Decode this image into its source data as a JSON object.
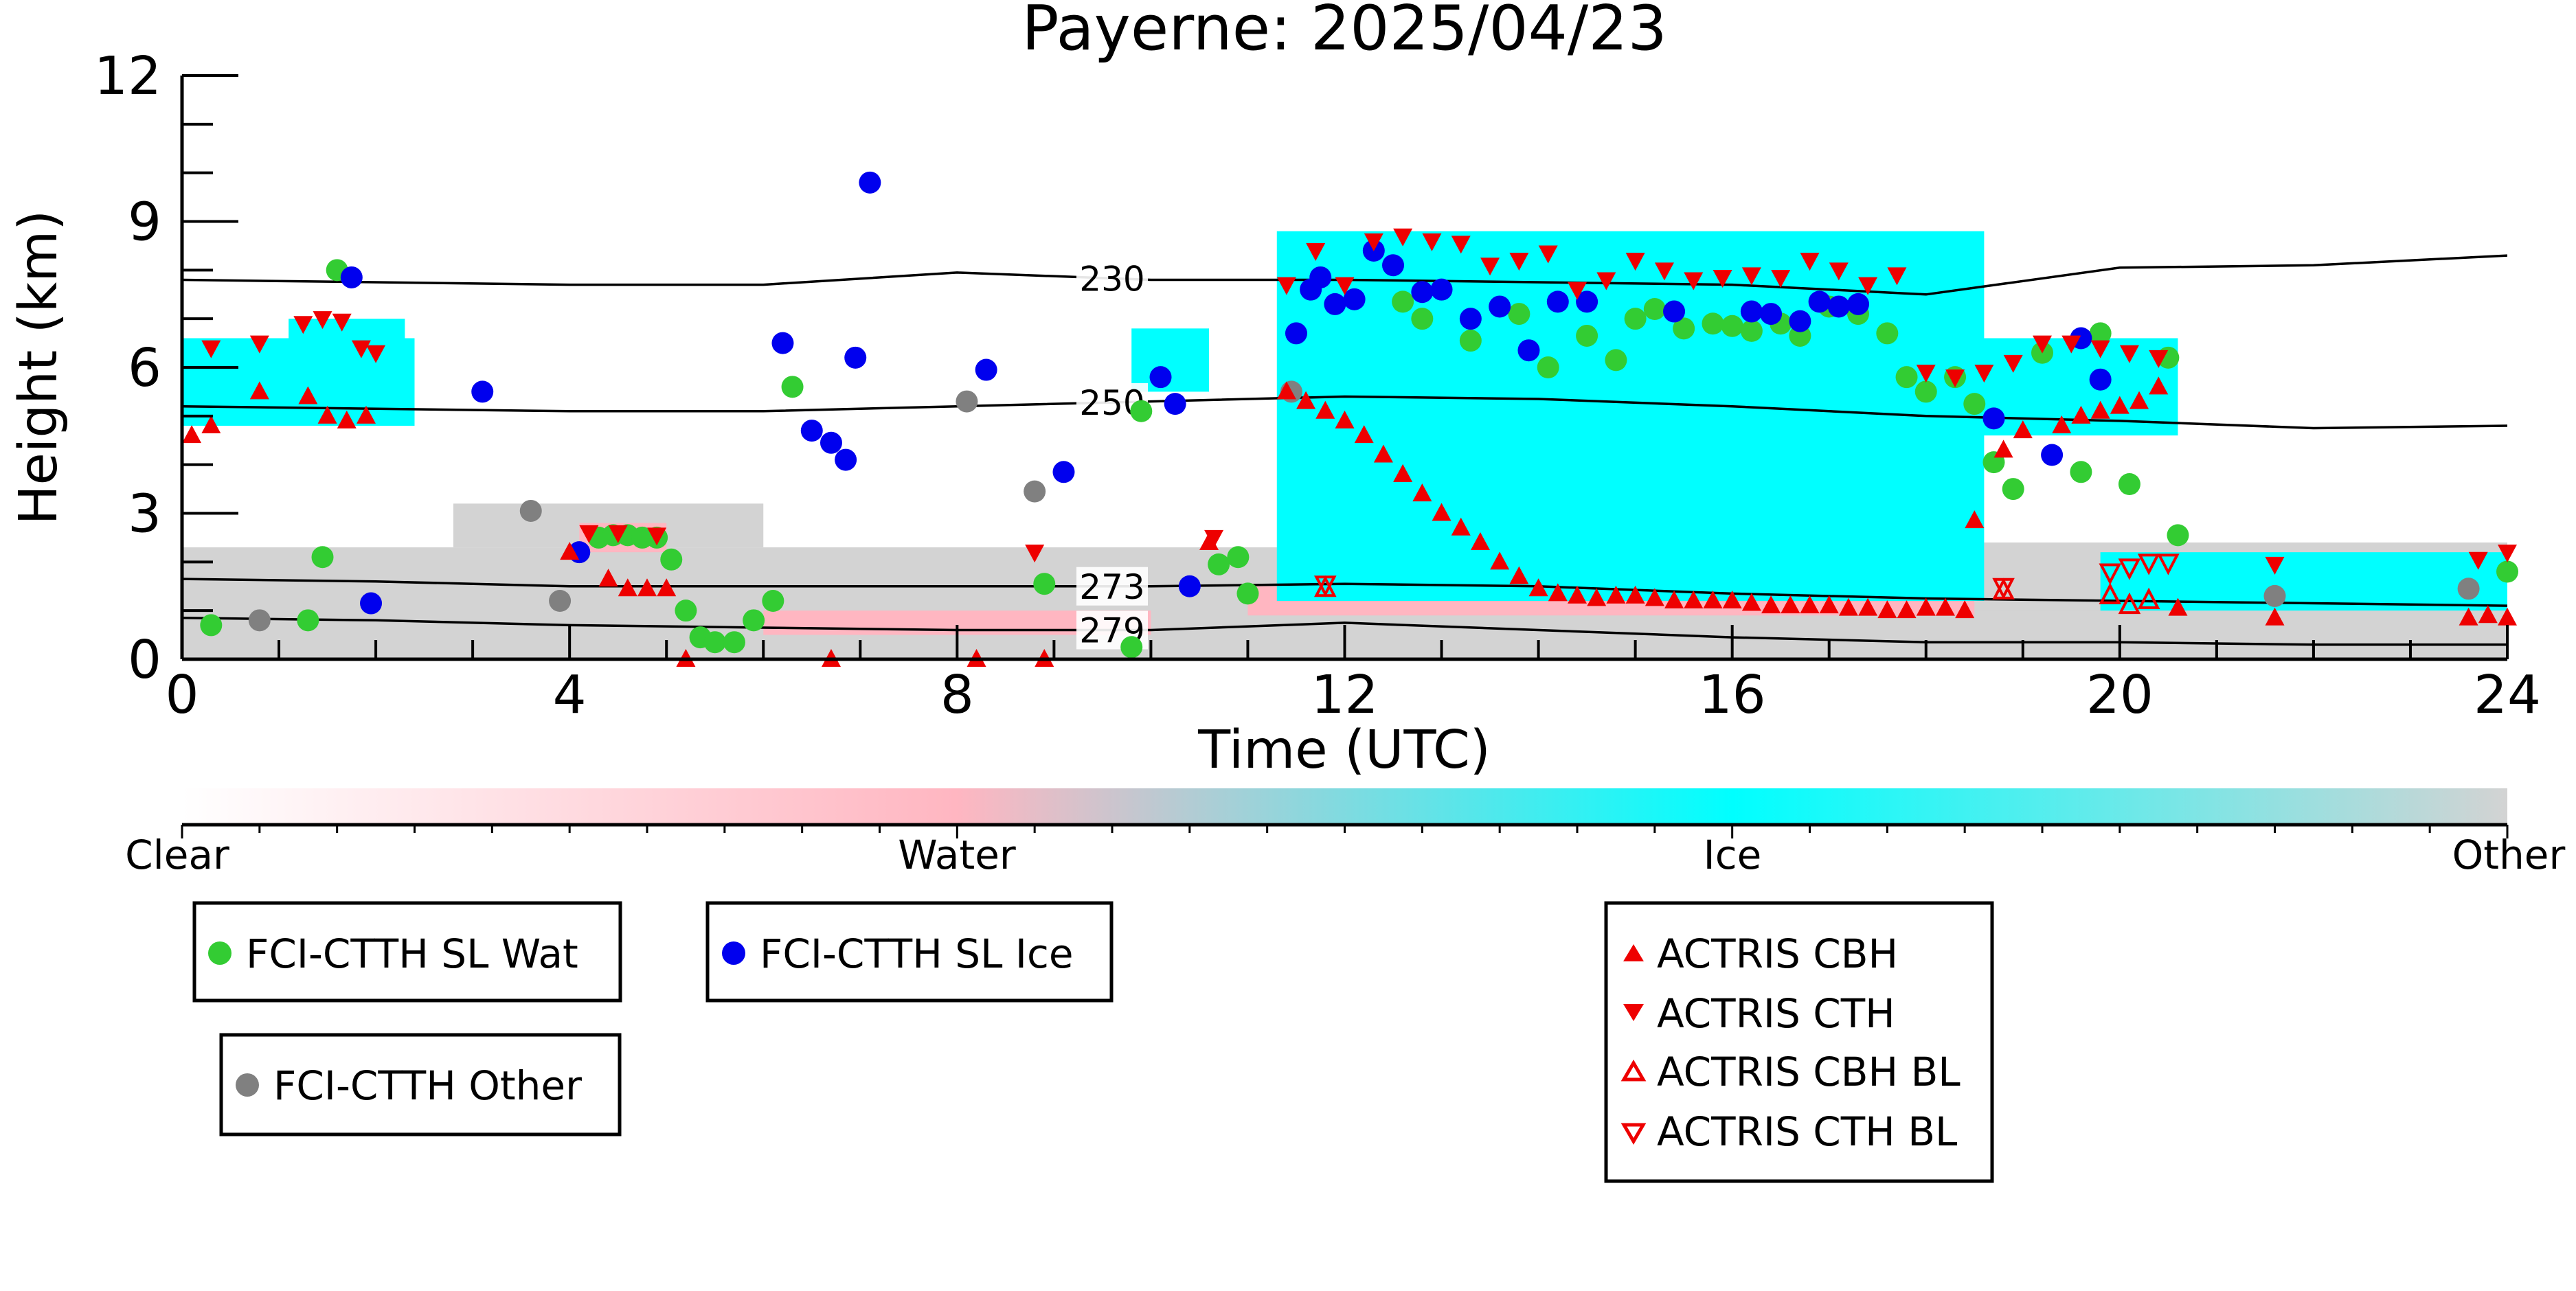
{
  "chart_data": {
    "type": "scatter",
    "title": "Payerne: 2025/04/23",
    "xlabel": "Time (UTC)",
    "ylabel": "Height (km)",
    "xlim": [
      0,
      24
    ],
    "ylim": [
      0,
      12
    ],
    "xticks": [
      0,
      4,
      8,
      12,
      16,
      20,
      24
    ],
    "yticks": [
      0,
      3,
      6,
      9,
      12
    ],
    "grid": false,
    "colorbar": {
      "labels": [
        "Clear",
        "Water",
        "Ice",
        "Other"
      ],
      "colors": {
        "Clear": "#ffffff",
        "Water": "#ffb6c1",
        "Ice": "#00ffff",
        "Other": "#d3d3d3"
      }
    },
    "background_cloud_mask": {
      "ice": [
        {
          "t0": 0.0,
          "t1": 2.4,
          "h0": 4.8,
          "h1": 6.6
        },
        {
          "t0": 1.1,
          "t1": 2.3,
          "h0": 5.0,
          "h1": 7.0
        },
        {
          "t0": 9.8,
          "t1": 10.6,
          "h0": 5.5,
          "h1": 6.8
        },
        {
          "t0": 11.3,
          "t1": 18.6,
          "h0": 1.2,
          "h1": 8.8
        },
        {
          "t0": 18.4,
          "t1": 20.6,
          "h0": 4.6,
          "h1": 6.6
        },
        {
          "t0": 19.8,
          "t1": 24.0,
          "h0": 1.0,
          "h1": 2.2
        }
      ],
      "water": [
        {
          "t0": 4.1,
          "t1": 5.0,
          "h0": 2.2,
          "h1": 2.8
        },
        {
          "t0": 11.0,
          "t1": 18.5,
          "h0": 0.9,
          "h1": 1.5
        },
        {
          "t0": 6.0,
          "t1": 10.0,
          "h0": 0.5,
          "h1": 1.0
        }
      ],
      "other": [
        {
          "t0": 0.0,
          "t1": 11.5,
          "h0": 0.0,
          "h1": 2.3
        },
        {
          "t0": 2.8,
          "t1": 6.0,
          "h0": 2.3,
          "h1": 3.2
        },
        {
          "t0": 11.5,
          "t1": 24.0,
          "h0": 0.0,
          "h1": 1.1
        },
        {
          "t0": 18.2,
          "t1": 24.0,
          "h0": 1.0,
          "h1": 2.4
        }
      ]
    },
    "isotherms": [
      {
        "label": "230",
        "label_x": 9.6,
        "x": [
          0,
          2,
          4,
          6,
          8,
          10,
          12,
          14,
          16,
          18,
          20,
          22,
          24
        ],
        "y": [
          7.8,
          7.75,
          7.7,
          7.7,
          7.95,
          7.8,
          7.8,
          7.75,
          7.7,
          7.5,
          8.05,
          8.1,
          8.3
        ]
      },
      {
        "label": "250",
        "label_x": 9.6,
        "x": [
          0,
          2,
          4,
          6,
          8,
          10,
          12,
          14,
          16,
          18,
          20,
          22,
          24
        ],
        "y": [
          5.2,
          5.15,
          5.1,
          5.1,
          5.2,
          5.3,
          5.4,
          5.35,
          5.2,
          5.0,
          4.9,
          4.75,
          4.8
        ]
      },
      {
        "label": "273",
        "label_x": 9.6,
        "x": [
          0,
          2,
          4,
          6,
          8,
          10,
          12,
          14,
          16,
          18,
          20,
          22,
          24
        ],
        "y": [
          1.65,
          1.6,
          1.5,
          1.5,
          1.5,
          1.5,
          1.55,
          1.5,
          1.35,
          1.25,
          1.2,
          1.15,
          1.1
        ]
      },
      {
        "label": "279",
        "label_x": 9.6,
        "x": [
          0,
          2,
          4,
          6,
          8,
          10,
          12,
          14,
          16,
          18,
          20,
          22,
          24
        ],
        "y": [
          0.85,
          0.8,
          0.7,
          0.65,
          0.6,
          0.6,
          0.75,
          0.6,
          0.45,
          0.35,
          0.35,
          0.3,
          0.3
        ]
      }
    ],
    "series": [
      {
        "name": "FCI-CTTH SL Wat",
        "marker": "circle",
        "color": "#33cc33",
        "x": [
          0.3,
          1.3,
          1.45,
          1.6,
          4.3,
          4.45,
          4.6,
          4.75,
          4.9,
          5.05,
          5.2,
          5.35,
          5.5,
          5.7,
          5.9,
          6.1,
          6.3,
          8.9,
          9.8,
          9.9,
          10.7,
          10.9,
          11.0,
          12.6,
          12.8,
          13.3,
          13.8,
          14.1,
          14.5,
          14.8,
          15.0,
          15.2,
          15.5,
          15.8,
          16.0,
          16.2,
          16.5,
          16.7,
          17.0,
          17.3,
          17.6,
          17.8,
          18.0,
          18.3,
          18.5,
          18.7,
          18.9,
          19.2,
          19.6,
          19.8,
          20.1,
          20.5,
          20.6,
          24.0
        ],
        "y": [
          0.7,
          0.8,
          2.1,
          8.0,
          2.5,
          2.55,
          2.55,
          2.5,
          2.5,
          2.05,
          1.0,
          0.45,
          0.35,
          0.35,
          0.8,
          1.2,
          5.6,
          1.55,
          0.25,
          5.1,
          1.95,
          2.1,
          1.35,
          7.35,
          7.0,
          6.55,
          7.1,
          6.0,
          6.65,
          6.15,
          7.0,
          7.2,
          6.8,
          6.9,
          6.85,
          6.75,
          6.9,
          6.65,
          7.25,
          7.1,
          6.7,
          5.8,
          5.5,
          5.8,
          5.25,
          4.05,
          3.5,
          6.3,
          3.85,
          6.7,
          3.6,
          6.2,
          2.55,
          1.8
        ]
      },
      {
        "name": "FCI-CTTH SL Ice",
        "marker": "circle",
        "color": "#0000ee",
        "x": [
          1.75,
          1.95,
          3.1,
          4.1,
          6.2,
          6.5,
          6.7,
          6.85,
          6.95,
          7.1,
          8.3,
          9.1,
          10.1,
          10.25,
          10.4,
          11.5,
          11.65,
          11.75,
          11.9,
          12.1,
          12.3,
          12.5,
          12.8,
          13.0,
          13.3,
          13.6,
          13.9,
          14.2,
          14.5,
          15.4,
          16.2,
          16.4,
          16.7,
          16.9,
          17.1,
          17.3,
          18.7,
          19.3,
          19.6,
          19.8
        ],
        "y": [
          7.85,
          1.15,
          5.5,
          2.2,
          6.5,
          4.7,
          4.45,
          4.1,
          6.2,
          9.8,
          5.95,
          3.85,
          5.8,
          5.25,
          1.5,
          6.7,
          7.6,
          7.85,
          7.3,
          7.4,
          8.4,
          8.1,
          7.55,
          7.6,
          7.0,
          7.25,
          6.35,
          7.35,
          7.35,
          7.15,
          7.15,
          7.1,
          6.95,
          7.35,
          7.25,
          7.3,
          4.95,
          4.2,
          6.6,
          5.75
        ]
      },
      {
        "name": "FCI-CTTH Other",
        "marker": "circle",
        "color": "#808080",
        "x": [
          0.8,
          3.6,
          3.9,
          8.1,
          8.8,
          11.45,
          21.6,
          23.6
        ],
        "y": [
          0.8,
          3.05,
          1.2,
          5.3,
          3.45,
          5.5,
          1.3,
          1.45
        ]
      },
      {
        "name": "ACTRIS CBH",
        "marker": "triangle-up",
        "color": "#ee0000",
        "x": [
          0.1,
          0.3,
          0.8,
          1.3,
          1.5,
          1.7,
          1.9,
          4.0,
          4.4,
          4.6,
          4.8,
          5.0,
          5.2,
          6.7,
          8.2,
          8.9,
          10.6,
          11.4,
          11.6,
          11.8,
          12.0,
          12.2,
          12.4,
          12.6,
          12.8,
          13.0,
          13.2,
          13.4,
          13.6,
          13.8,
          14.0,
          14.2,
          14.4,
          14.6,
          14.8,
          15.0,
          15.2,
          15.4,
          15.6,
          15.8,
          16.0,
          16.2,
          16.4,
          16.6,
          16.8,
          17.0,
          17.2,
          17.4,
          17.6,
          17.8,
          18.0,
          18.2,
          18.4,
          18.5,
          18.8,
          19.0,
          19.4,
          19.6,
          19.8,
          20.0,
          20.2,
          20.4,
          20.6,
          21.6,
          23.6,
          23.8,
          24.0
        ],
        "y": [
          4.6,
          4.8,
          5.5,
          5.4,
          5.0,
          4.9,
          5.0,
          2.2,
          1.65,
          1.45,
          1.45,
          1.45,
          0.0,
          0.0,
          0.0,
          0.0,
          2.4,
          5.5,
          5.3,
          5.1,
          4.9,
          4.6,
          4.2,
          3.8,
          3.4,
          3.0,
          2.7,
          2.4,
          2.0,
          1.7,
          1.45,
          1.35,
          1.3,
          1.25,
          1.3,
          1.3,
          1.25,
          1.2,
          1.2,
          1.2,
          1.2,
          1.15,
          1.1,
          1.1,
          1.1,
          1.1,
          1.05,
          1.05,
          1.0,
          1.0,
          1.05,
          1.05,
          1.0,
          2.85,
          4.3,
          4.7,
          4.8,
          5.0,
          5.1,
          5.2,
          5.3,
          5.6,
          1.05,
          0.85,
          0.85,
          0.9,
          0.85
        ]
      },
      {
        "name": "ACTRIS CTH",
        "marker": "triangle-down",
        "color": "#ee0000",
        "x": [
          0.3,
          0.8,
          1.25,
          1.45,
          1.65,
          1.85,
          2.0,
          4.2,
          4.5,
          4.9,
          8.8,
          10.65,
          11.4,
          11.7,
          12.0,
          12.3,
          12.6,
          12.9,
          13.2,
          13.5,
          13.8,
          14.1,
          14.4,
          14.7,
          15.0,
          15.3,
          15.6,
          15.9,
          16.2,
          16.5,
          16.8,
          17.1,
          17.4,
          17.7,
          18.0,
          18.3,
          18.6,
          18.9,
          19.2,
          19.5,
          19.8,
          20.1,
          20.4,
          21.6,
          23.7,
          24.0
        ],
        "y": [
          6.4,
          6.5,
          6.9,
          7.0,
          6.95,
          6.4,
          6.3,
          2.6,
          2.6,
          2.55,
          2.2,
          2.5,
          7.7,
          8.4,
          7.7,
          8.6,
          8.7,
          8.6,
          8.55,
          8.1,
          8.2,
          8.35,
          7.6,
          7.8,
          8.2,
          8.0,
          7.8,
          7.85,
          7.9,
          7.85,
          8.2,
          8.0,
          7.7,
          7.9,
          5.9,
          5.8,
          5.9,
          6.1,
          6.5,
          6.5,
          6.4,
          6.3,
          6.2,
          1.95,
          2.05,
          2.2
        ]
      },
      {
        "name": "ACTRIS CBH BL",
        "marker": "triangle-up-open",
        "color": "#ee0000",
        "x": [
          11.8,
          18.8,
          19.9,
          20.1,
          20.3
        ],
        "y": [
          1.45,
          1.4,
          1.3,
          1.1,
          1.2
        ]
      },
      {
        "name": "ACTRIS CTH BL",
        "marker": "triangle-down-open",
        "color": "#ee0000",
        "x": [
          11.8,
          18.8,
          19.9,
          20.1,
          20.3,
          20.5
        ],
        "y": [
          1.55,
          1.5,
          1.8,
          1.9,
          2.0,
          2.0
        ]
      }
    ],
    "legend": [
      {
        "placement": "bottom-left",
        "entries": [
          "FCI-CTTH SL Wat"
        ]
      },
      {
        "placement": "bottom-left",
        "entries": [
          "FCI-CTTH SL Ice"
        ]
      },
      {
        "placement": "bottom-left",
        "entries": [
          "FCI-CTTH Other"
        ]
      },
      {
        "placement": "bottom-center",
        "entries": [
          "ACTRIS CBH",
          "ACTRIS CTH",
          "ACTRIS CBH BL",
          "ACTRIS CTH BL"
        ]
      }
    ]
  }
}
